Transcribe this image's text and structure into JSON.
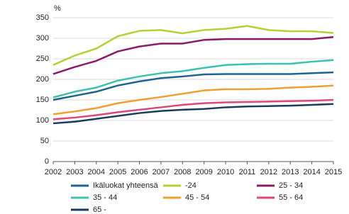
{
  "chart_data": {
    "type": "line",
    "y_label": "%",
    "x": [
      2002,
      2003,
      2004,
      2005,
      2006,
      2007,
      2008,
      2009,
      2010,
      2011,
      2012,
      2013,
      2014,
      2015
    ],
    "xlim": [
      2002,
      2015
    ],
    "xticks": [
      2002,
      2003,
      2004,
      2005,
      2006,
      2007,
      2008,
      2009,
      2010,
      2011,
      2012,
      2013,
      2014,
      2015
    ],
    "ylim": [
      0,
      350
    ],
    "yticks": [
      0,
      50,
      100,
      150,
      200,
      250,
      300,
      350
    ],
    "grid": true,
    "legend": "bottom",
    "series": [
      {
        "name": "Ikäluokat yhteensä",
        "color": "#1f6391",
        "values": [
          150,
          160,
          170,
          185,
          195,
          203,
          207,
          212,
          213,
          213,
          213,
          213,
          215,
          217
        ]
      },
      {
        "name": "-24",
        "color": "#b3d235",
        "values": [
          235,
          258,
          275,
          305,
          318,
          320,
          312,
          320,
          323,
          330,
          320,
          317,
          317,
          313
        ]
      },
      {
        "name": "25 - 34",
        "color": "#8c1a6a",
        "values": [
          213,
          230,
          245,
          268,
          280,
          287,
          287,
          296,
          298,
          298,
          298,
          298,
          298,
          303
        ]
      },
      {
        "name": "35 - 44",
        "color": "#3dbfb1",
        "values": [
          156,
          170,
          180,
          197,
          207,
          215,
          220,
          228,
          235,
          237,
          238,
          238,
          243,
          247
        ]
      },
      {
        "name": "45 - 54",
        "color": "#f0a030",
        "values": [
          115,
          122,
          130,
          142,
          150,
          157,
          165,
          173,
          176,
          176,
          177,
          180,
          182,
          185
        ]
      },
      {
        "name": "55 - 64",
        "color": "#e0457b",
        "values": [
          103,
          107,
          113,
          120,
          126,
          132,
          138,
          142,
          144,
          145,
          146,
          147,
          148,
          150
        ]
      },
      {
        "name": "65 -",
        "color": "#1a3b5c",
        "values": [
          93,
          97,
          104,
          111,
          118,
          123,
          126,
          128,
          132,
          134,
          135,
          136,
          138,
          140
        ]
      }
    ]
  }
}
